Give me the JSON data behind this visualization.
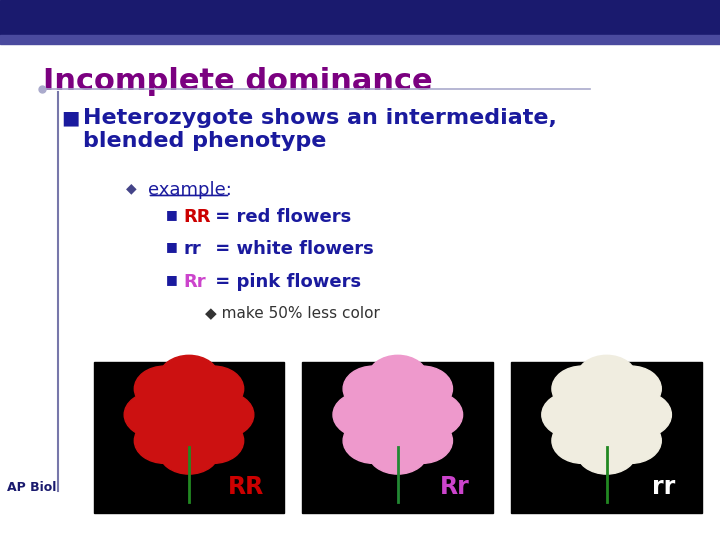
{
  "title": "Incomplete dominance",
  "title_color": "#7B0080",
  "title_fontsize": 22,
  "header_bar_color": "#1a1a6e",
  "header_bar2_color": "#4a4a9e",
  "bg_color": "#ffffff",
  "bullet1_text": "Heterozygote shows an intermediate,\nblended phenotype",
  "bullet1_color": "#1a1a9e",
  "bullet1_fontsize": 16,
  "bullet1_marker": "■",
  "sub_bullet_color": "#1a1a9e",
  "example_text": "example:",
  "example_color": "#1a1a9e",
  "example_fontsize": 13,
  "line1_RR": "RR",
  "line1_rest": " = red flowers",
  "line1_RR_color": "#cc0000",
  "line2_rr": "rr",
  "line2_rest": " = white flowers",
  "line2_rr_color": "#1a1a9e",
  "line3_Rr": "Rr",
  "line3_rest": " = pink flowers",
  "line3_Rr_color": "#cc44cc",
  "sub_sub_text": "◆ make 50% less color",
  "sub_sub_color": "#333333",
  "sub_sub_fontsize": 11,
  "flowers_text_color_RR": "#cc0000",
  "flowers_text_color_Rr": "#cc44cc",
  "flowers_text_color_rr": "#ffffff",
  "ap_bio_color": "#1a1a6e",
  "body_fontsize": 13,
  "vertical_line_color": "#7777aa"
}
